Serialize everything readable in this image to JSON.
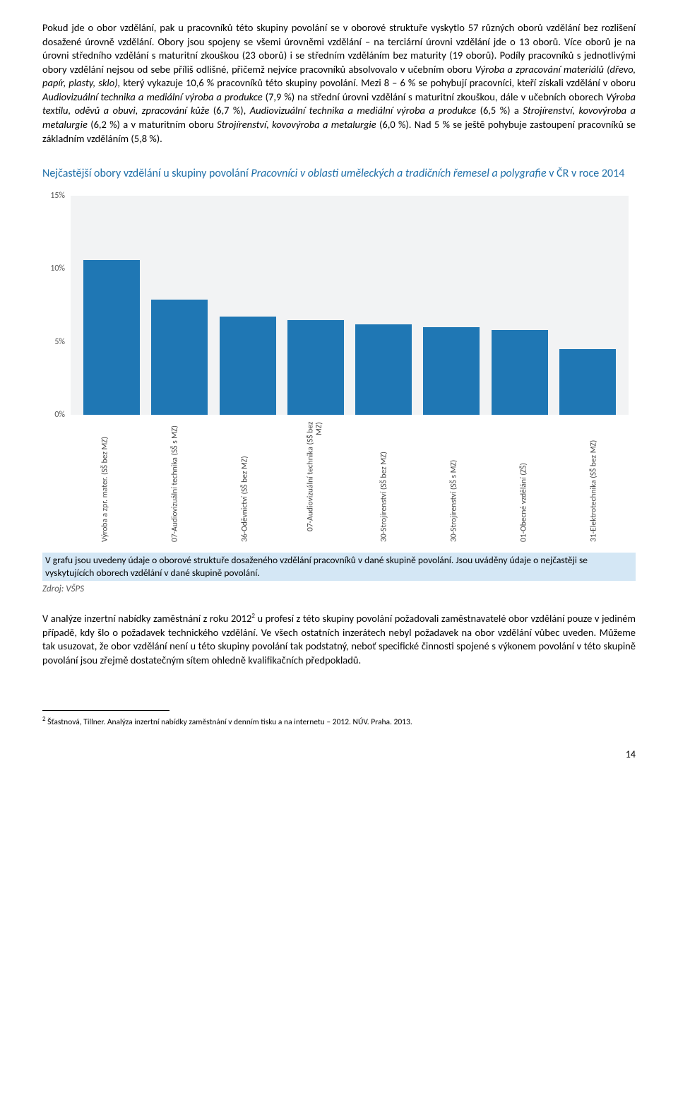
{
  "para1": {
    "s1a": "Pokud jde o obor vzdělání, pak u pracovníků této skupiny povolání se v oborové struktuře vyskytlo 57 různých oborů vzdělání bez rozlišení dosažené úrovně vzdělání. Obory jsou spojeny se všemi úrovněmi vzdělání – na terciární úrovni vzdělání jde o 13 oborů. Více oborů je na úrovni středního vzdělání s maturitní zkouškou (23 oborů) i se středním vzděláním bez maturity (19 oborů).   Podíly pracovníků s jednotlivými obory vzdělání nejsou od sebe příliš odlišné, přičemž nejvíce pracovníků absolvovalo v učebním oboru ",
    "i1": "Výroba a zpracování materiálů (dřevo, papír, plasty, sklo),",
    "s1b": " který vykazuje 10,6 % pracovníků této skupiny povolání. Mezi 8 – 6 % se pohybují pracovníci, kteří získali vzdělání v oboru ",
    "i2": "Audiovizuální technika a mediální výroba a produkce",
    "s1c": " (7,9 %) na střední úrovni vzdělání s maturitní zkouškou, dále v učebních oborech ",
    "i3": "Výroba textilu, oděvů a obuvi, zpracování kůže",
    "s1d": " (6,7 %), ",
    "i4": "Audiovizuální technika a mediální výroba a produkce",
    "s1e": " (6,5 %) a ",
    "i5": "Strojírenství, kovovýroba a metalurgie",
    "s1f": " (6,2 %) a v maturitním oboru ",
    "i6": "Strojírenství, kovovýroba a metalurgie",
    "s1g": " (6,0 %).   Nad 5 % se ještě pohybuje zastoupení pracovníků se základním vzděláním (5,8 %)."
  },
  "chart_title": {
    "a": "Nejčastější obory vzdělání u skupiny povolání ",
    "i": "Pracovníci v oblasti uměleckých a tradičních řemesel a polygrafie",
    "b": " v ČR v roce 2014"
  },
  "chart": {
    "ymax": 15,
    "yticks": [
      "0%",
      "5%",
      "10%",
      "15%"
    ],
    "plot_bg": "#f2f3f4",
    "bar_color": "#1f77b4",
    "bars": [
      {
        "label": "Výroba a zpr. mater. (SŠ bez MZ)",
        "value": 10.6
      },
      {
        "label": "07-Audiovizuální technika (SŠ s MZ)",
        "value": 7.9
      },
      {
        "label": "36-Oděvnictví (SŠ bez MZ)",
        "value": 6.7
      },
      {
        "label": "07-Audiovizuální technika (SŠ bez MZ)",
        "value": 6.5
      },
      {
        "label": "30-Strojírenství (SŠ bez MZ)",
        "value": 6.2
      },
      {
        "label": "30-Strojírenství (SŠ s MZ)",
        "value": 6.0
      },
      {
        "label": "01-Obecné vzdělání (ZŠ)",
        "value": 5.8
      },
      {
        "label": "31-Elektrotechnika (SŠ bez MZ)",
        "value": 4.5
      }
    ]
  },
  "chart_note": "V grafu jsou uvedeny údaje o oborové struktuře dosaženého vzdělání pracovníků v dané skupině povolání. Jsou uváděny údaje o nejčastěji se vyskytujících oborech vzdělání v dané skupině povolání.",
  "source": "Zdroj: VŠPS",
  "para2": {
    "a": "V analýze inzertní nabídky zaměstnání z roku 2012",
    "sup": "2",
    "b": " u profesí z této skupiny povolání požadovali zaměstnavatelé obor vzdělání pouze v jediném případě, kdy šlo o požadavek technického vzdělání. Ve všech ostatních inzerátech nebyl požadavek na obor vzdělání vůbec uveden. Můžeme tak usuzovat, že obor vzdělání není u této skupiny povolání tak podstatný, neboť specifické činnosti spojené s výkonem povolání v této skupině povolání jsou zřejmě dostatečným sítem ohledně kvalifikačních předpokladů."
  },
  "footnote": {
    "sup": "2",
    "text": " Šťastnová, Tillner. Analýza inzertní nabídky zaměstnání v denním tisku a na internetu – 2012. NÚV. Praha. 2013."
  },
  "page_num": "14"
}
